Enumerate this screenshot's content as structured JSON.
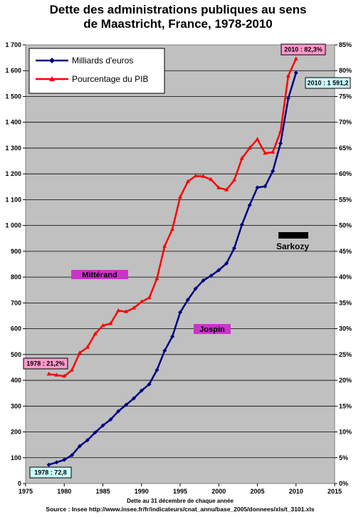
{
  "chart_data": {
    "type": "line",
    "title_line1": "Dette des administrations publiques au sens",
    "title_line2": "de Maastricht, France, 1978-2010",
    "xlabel": "Dette au 31 décembre de chaque année",
    "source": "Source : Insee http://www.insee.fr/fr/indicateurs/cnat_annu/base_2005/donnees/xls/t_3101.xls",
    "xlim": [
      1975,
      2015
    ],
    "ylim_left": [
      0,
      1700
    ],
    "ylim_right": [
      0,
      85
    ],
    "x_ticks": [
      "1975",
      "1980",
      "1985",
      "1990",
      "1995",
      "2000",
      "2005",
      "2010",
      "2015"
    ],
    "y_left_ticks": [
      "0",
      "100",
      "200",
      "300",
      "400",
      "500",
      "600",
      "700",
      "800",
      "900",
      "1 000",
      "1 100",
      "1 200",
      "1 300",
      "1 400",
      "1 500",
      "1 600",
      "1 700"
    ],
    "y_right_ticks": [
      "0%",
      "5%",
      "10%",
      "15%",
      "20%",
      "25%",
      "30%",
      "35%",
      "40%",
      "45%",
      "50%",
      "55%",
      "60%",
      "65%",
      "70%",
      "75%",
      "80%",
      "85%"
    ],
    "grid": "horizontal",
    "background": "#c0c0c0",
    "legend_position": "top-left",
    "x": [
      1978,
      1979,
      1980,
      1981,
      1982,
      1983,
      1984,
      1985,
      1986,
      1987,
      1988,
      1989,
      1990,
      1991,
      1992,
      1993,
      1994,
      1995,
      1996,
      1997,
      1998,
      1999,
      2000,
      2001,
      2002,
      2003,
      2004,
      2005,
      2006,
      2007,
      2008,
      2009,
      2010
    ],
    "series": [
      {
        "name": "Milliards d'euros",
        "axis": "left",
        "color": "#000080",
        "marker": "diamond",
        "values": [
          72.8,
          82,
          92,
          110,
          145,
          168,
          198,
          225,
          248,
          280,
          305,
          330,
          360,
          385,
          440,
          515,
          570,
          663,
          712,
          755,
          787,
          805,
          827,
          853,
          912,
          1003,
          1079,
          1147,
          1152,
          1211,
          1318,
          1493,
          1591.2
        ]
      },
      {
        "name": "Pourcentage du PIB",
        "axis": "right",
        "color": "#ff0000",
        "marker": "triangle",
        "values": [
          21.2,
          21.0,
          20.8,
          22.0,
          25.3,
          26.4,
          29.0,
          30.6,
          31.0,
          33.5,
          33.3,
          34.0,
          35.2,
          36.0,
          39.7,
          46.0,
          49.3,
          55.5,
          58.5,
          59.6,
          59.5,
          58.9,
          57.3,
          56.9,
          58.8,
          63.0,
          65.0,
          66.7,
          64.0,
          64.2,
          68.2,
          79.0,
          82.3
        ]
      }
    ],
    "annotations": [
      {
        "text": "2010 : 82,3%",
        "style": "pink"
      },
      {
        "text": "2010 : 1 591,2",
        "style": "cyan"
      },
      {
        "text": "1978 : 21,2%",
        "style": "pink"
      },
      {
        "text": "1978 : 72,8",
        "style": "cyan"
      },
      {
        "text": "Mittérand",
        "style": "magenta"
      },
      {
        "text": "Jospin",
        "style": "magenta"
      },
      {
        "text": "Sarkozy",
        "style": "black-bar"
      }
    ]
  }
}
